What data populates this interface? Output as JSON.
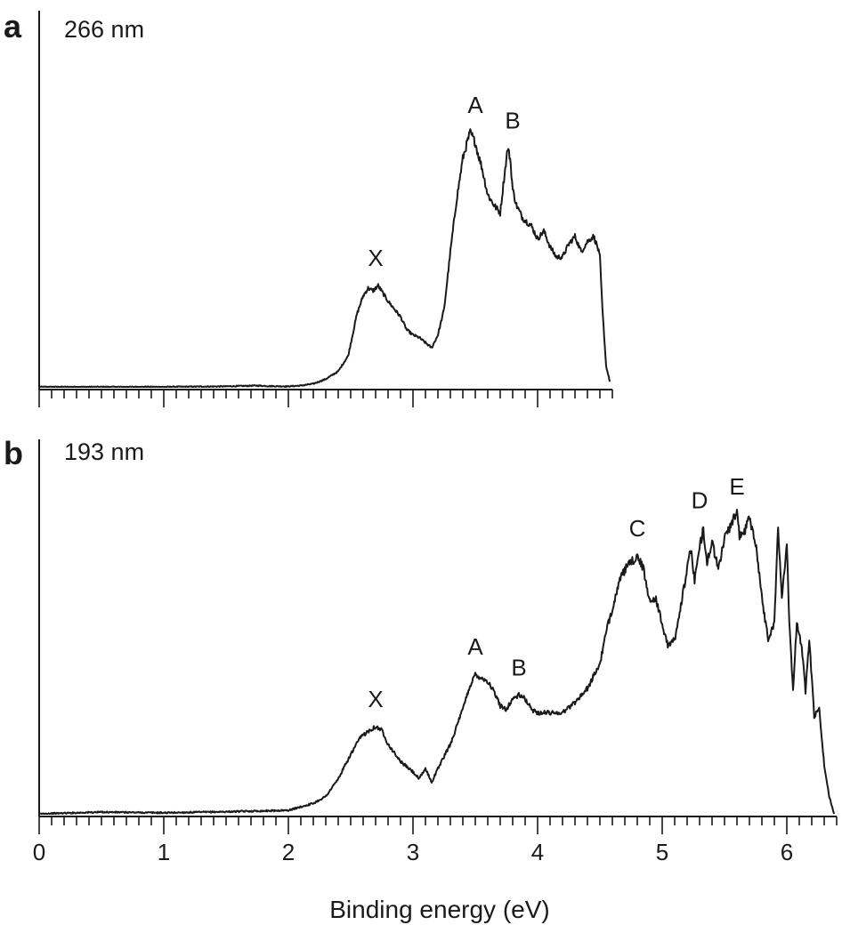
{
  "chart_data": [
    {
      "type": "line",
      "panel": "a",
      "wavelength": "266 nm",
      "xlim": [
        0,
        4.6
      ],
      "peaks": [
        {
          "label": "X",
          "x": 2.7
        },
        {
          "label": "A",
          "x": 3.5
        },
        {
          "label": "B",
          "x": 3.8
        }
      ],
      "x": [
        0,
        1.0,
        1.5,
        1.75,
        1.85,
        2.0,
        2.1,
        2.2,
        2.3,
        2.4,
        2.48,
        2.55,
        2.6,
        2.64,
        2.68,
        2.72,
        2.76,
        2.8,
        2.85,
        2.9,
        2.95,
        3.0,
        3.05,
        3.1,
        3.15,
        3.2,
        3.25,
        3.3,
        3.35,
        3.4,
        3.44,
        3.46,
        3.48,
        3.5,
        3.52,
        3.55,
        3.6,
        3.65,
        3.7,
        3.73,
        3.76,
        3.78,
        3.8,
        3.83,
        3.88,
        3.95,
        4.0,
        4.05,
        4.1,
        4.15,
        4.2,
        4.25,
        4.3,
        4.35,
        4.4,
        4.45,
        4.48,
        4.5,
        4.52,
        4.55,
        4.58
      ],
      "y": [
        0.0,
        0.0,
        0.002,
        0.005,
        0.003,
        0.002,
        0.005,
        0.012,
        0.03,
        0.06,
        0.12,
        0.28,
        0.35,
        0.38,
        0.37,
        0.39,
        0.36,
        0.33,
        0.3,
        0.27,
        0.22,
        0.2,
        0.19,
        0.17,
        0.15,
        0.2,
        0.3,
        0.52,
        0.72,
        0.88,
        0.95,
        0.98,
        0.96,
        0.94,
        0.9,
        0.85,
        0.74,
        0.7,
        0.67,
        0.8,
        0.92,
        0.88,
        0.76,
        0.7,
        0.65,
        0.62,
        0.57,
        0.6,
        0.54,
        0.5,
        0.5,
        0.55,
        0.58,
        0.52,
        0.56,
        0.58,
        0.54,
        0.5,
        0.3,
        0.08,
        0.02
      ]
    },
    {
      "type": "line",
      "panel": "b",
      "wavelength": "193 nm",
      "xlim": [
        0,
        6.4
      ],
      "xlabel": "Binding energy (eV)",
      "xticks": [
        "0",
        "1",
        "2",
        "3",
        "4",
        "5",
        "6"
      ],
      "peaks": [
        {
          "label": "X",
          "x": 2.7
        },
        {
          "label": "A",
          "x": 3.5
        },
        {
          "label": "B",
          "x": 3.85
        },
        {
          "label": "C",
          "x": 4.8
        },
        {
          "label": "D",
          "x": 5.3
        },
        {
          "label": "E",
          "x": 5.6
        }
      ],
      "x": [
        0,
        0.5,
        1.0,
        1.5,
        2.0,
        2.1,
        2.2,
        2.3,
        2.4,
        2.5,
        2.58,
        2.65,
        2.7,
        2.75,
        2.8,
        2.9,
        3.0,
        3.05,
        3.1,
        3.15,
        3.2,
        3.3,
        3.4,
        3.45,
        3.5,
        3.55,
        3.6,
        3.65,
        3.7,
        3.75,
        3.8,
        3.85,
        3.9,
        3.95,
        4.0,
        4.1,
        4.2,
        4.3,
        4.4,
        4.5,
        4.55,
        4.6,
        4.65,
        4.7,
        4.75,
        4.8,
        4.85,
        4.9,
        4.95,
        5.0,
        5.05,
        5.1,
        5.15,
        5.2,
        5.23,
        5.26,
        5.3,
        5.33,
        5.36,
        5.4,
        5.45,
        5.5,
        5.55,
        5.6,
        5.62,
        5.65,
        5.7,
        5.75,
        5.8,
        5.85,
        5.9,
        5.93,
        5.96,
        6.0,
        6.02,
        6.05,
        6.08,
        6.12,
        6.15,
        6.18,
        6.22,
        6.26,
        6.3,
        6.34,
        6.38
      ],
      "y": [
        0.0,
        0.005,
        0.003,
        0.006,
        0.01,
        0.02,
        0.03,
        0.05,
        0.1,
        0.17,
        0.22,
        0.24,
        0.25,
        0.24,
        0.2,
        0.15,
        0.12,
        0.1,
        0.13,
        0.09,
        0.13,
        0.2,
        0.3,
        0.36,
        0.4,
        0.39,
        0.38,
        0.35,
        0.31,
        0.3,
        0.33,
        0.34,
        0.33,
        0.3,
        0.29,
        0.29,
        0.29,
        0.32,
        0.36,
        0.43,
        0.52,
        0.59,
        0.66,
        0.7,
        0.72,
        0.74,
        0.7,
        0.61,
        0.62,
        0.54,
        0.48,
        0.5,
        0.6,
        0.7,
        0.76,
        0.67,
        0.76,
        0.82,
        0.72,
        0.78,
        0.7,
        0.79,
        0.83,
        0.86,
        0.8,
        0.8,
        0.85,
        0.78,
        0.62,
        0.5,
        0.55,
        0.82,
        0.62,
        0.78,
        0.55,
        0.35,
        0.55,
        0.48,
        0.35,
        0.5,
        0.28,
        0.3,
        0.14,
        0.05,
        0.0
      ]
    }
  ]
}
